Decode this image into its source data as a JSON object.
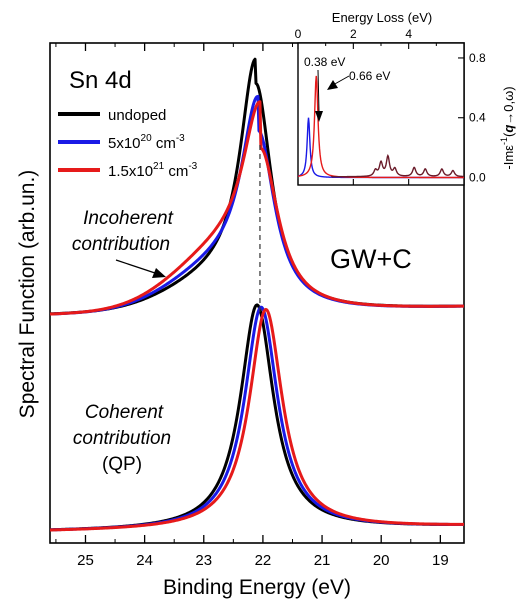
{
  "chart_data": [
    {
      "type": "line",
      "panel": "main",
      "xlabel": "Binding Energy (eV)",
      "ylabel": "Spectral Function (arb.un.)",
      "xlim": [
        25.6,
        18.6
      ],
      "x_reversed": true,
      "xticks": [
        25,
        24,
        23,
        22,
        21,
        20,
        19
      ],
      "yticks_shown": false,
      "annotations": {
        "core_level": "Sn 4d",
        "method": "GW+C",
        "incoherent_line1": "Incoherent",
        "incoherent_line2": "contribution",
        "coherent_line1": "Coherent",
        "coherent_line2": "contribution",
        "coherent_line3": "(QP)"
      },
      "legend": {
        "position": "top-left",
        "entries": [
          {
            "label": "undoped",
            "base": "",
            "exp": "",
            "unit": "",
            "unit_exp": "",
            "color": "#000000"
          },
          {
            "label": "",
            "base": "5x10",
            "exp": "20",
            "unit": " cm",
            "unit_exp": "-3",
            "color": "#1a1ae6"
          },
          {
            "label": "",
            "base": "1.5x10",
            "exp": "21",
            "unit": " cm",
            "unit_exp": "-3",
            "color": "#e61a1a"
          }
        ]
      },
      "series": [
        {
          "group": "upper",
          "key": "undoped",
          "color": "#000000",
          "peak_x": 22.12,
          "peak_height": 0.78,
          "width": 0.32,
          "shoulder": 0.1
        },
        {
          "group": "upper",
          "key": "5e20",
          "color": "#1a1ae6",
          "peak_x": 22.08,
          "peak_height": 0.62,
          "width": 0.34,
          "shoulder": 0.14
        },
        {
          "group": "upper",
          "key": "1.5e21",
          "color": "#e61a1a",
          "peak_x": 22.04,
          "peak_height": 0.56,
          "width": 0.36,
          "shoulder": 0.19
        },
        {
          "group": "lower",
          "key": "undoped",
          "color": "#000000",
          "peak_x": 22.1,
          "peak_height": 0.98,
          "width": 0.34,
          "shoulder": 0.0
        },
        {
          "group": "lower",
          "key": "5e20",
          "color": "#1a1ae6",
          "peak_x": 22.03,
          "peak_height": 0.97,
          "width": 0.34,
          "shoulder": 0.0
        },
        {
          "group": "lower",
          "key": "1.5e21",
          "color": "#e61a1a",
          "peak_x": 21.95,
          "peak_height": 0.96,
          "width": 0.34,
          "shoulder": 0.0
        }
      ],
      "dashed_guide_x": 22.05
    },
    {
      "type": "line",
      "panel": "inset",
      "xlabel": "Energy Loss (eV)",
      "ylabel_pre": "-Im",
      "ylabel_eps": "ε",
      "ylabel_exp": "-1",
      "ylabel_paren_open": "(",
      "ylabel_q": "q",
      "ylabel_rest": "→0,ω)",
      "xlim": [
        0,
        6
      ],
      "ylim": [
        -0.05,
        0.9
      ],
      "xticks": [
        0,
        2,
        4
      ],
      "yticks": [
        0.0,
        0.4,
        0.8
      ],
      "annotations": {
        "peak1": "0.38 eV",
        "peak2": "0.66 eV"
      },
      "series": [
        {
          "name": "5x10^20 cm^-3",
          "color": "#1a1ae6",
          "plasmon_eV": 0.38,
          "plasmon_height": 0.4
        },
        {
          "name": "1.5x10^21 cm^-3",
          "color": "#e61a1a",
          "plasmon_eV": 0.66,
          "plasmon_height": 0.68
        },
        {
          "name": "high-energy structure",
          "color": "#6a1b2a",
          "features": [
            [
              2.8,
              0.04
            ],
            [
              3.0,
              0.09
            ],
            [
              3.25,
              0.13
            ],
            [
              3.5,
              0.05
            ],
            [
              4.2,
              0.06
            ],
            [
              4.6,
              0.05
            ],
            [
              5.2,
              0.05
            ],
            [
              5.6,
              0.04
            ]
          ]
        }
      ]
    }
  ]
}
